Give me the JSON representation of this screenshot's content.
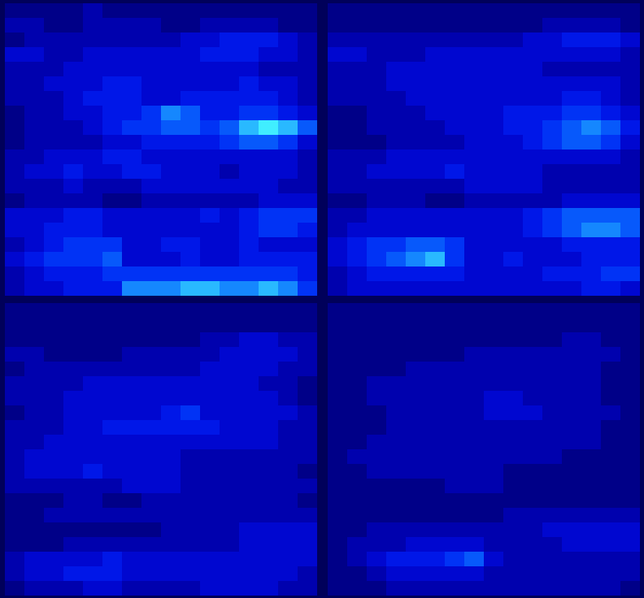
{
  "chart_data": [
    {
      "type": "heatmap",
      "tick_labels": false,
      "cells": [
        [
          1,
          1,
          1,
          1,
          2,
          1,
          1,
          1,
          1,
          1,
          1,
          1,
          1,
          1,
          1,
          1
        ],
        [
          2,
          2,
          1,
          1,
          2,
          2,
          2,
          2,
          1,
          1,
          2,
          2,
          2,
          2,
          1,
          1
        ],
        [
          1,
          2,
          2,
          2,
          2,
          2,
          2,
          2,
          2,
          3,
          3,
          4,
          4,
          4,
          3,
          2
        ],
        [
          3,
          3,
          2,
          2,
          3,
          3,
          3,
          3,
          3,
          3,
          4,
          4,
          4,
          3,
          3,
          2
        ],
        [
          2,
          2,
          2,
          3,
          3,
          3,
          3,
          3,
          3,
          3,
          3,
          3,
          3,
          2,
          2,
          2
        ],
        [
          2,
          2,
          3,
          3,
          3,
          4,
          4,
          3,
          3,
          3,
          3,
          3,
          4,
          3,
          3,
          2
        ],
        [
          2,
          2,
          2,
          3,
          4,
          4,
          4,
          3,
          3,
          4,
          4,
          4,
          4,
          4,
          3,
          2
        ],
        [
          1,
          2,
          2,
          3,
          3,
          4,
          4,
          5,
          7,
          6,
          4,
          4,
          5,
          5,
          4,
          3
        ],
        [
          1,
          2,
          2,
          2,
          3,
          4,
          5,
          5,
          6,
          6,
          5,
          6,
          8,
          9,
          8,
          6
        ],
        [
          1,
          2,
          2,
          2,
          2,
          3,
          3,
          4,
          4,
          4,
          4,
          5,
          6,
          6,
          5,
          3
        ],
        [
          2,
          2,
          3,
          3,
          3,
          4,
          4,
          3,
          3,
          3,
          3,
          3,
          3,
          3,
          3,
          2
        ],
        [
          2,
          3,
          3,
          4,
          3,
          3,
          4,
          4,
          3,
          3,
          3,
          2,
          3,
          3,
          3,
          2
        ],
        [
          2,
          2,
          2,
          3,
          2,
          2,
          2,
          3,
          3,
          3,
          3,
          3,
          3,
          3,
          2,
          2
        ],
        [
          1,
          2,
          2,
          2,
          2,
          1,
          1,
          2,
          2,
          2,
          2,
          2,
          2,
          3,
          3,
          3
        ],
        [
          3,
          3,
          3,
          4,
          4,
          3,
          3,
          3,
          3,
          3,
          4,
          3,
          4,
          5,
          5,
          5
        ],
        [
          3,
          3,
          4,
          4,
          4,
          3,
          3,
          3,
          3,
          3,
          3,
          3,
          4,
          5,
          5,
          4
        ],
        [
          2,
          3,
          4,
          5,
          5,
          5,
          3,
          3,
          4,
          4,
          3,
          3,
          4,
          3,
          3,
          3
        ],
        [
          3,
          4,
          5,
          5,
          5,
          6,
          3,
          3,
          3,
          4,
          3,
          3,
          4,
          4,
          4,
          4
        ],
        [
          2,
          3,
          4,
          4,
          4,
          5,
          5,
          5,
          5,
          5,
          5,
          5,
          5,
          5,
          5,
          4
        ],
        [
          2,
          3,
          3,
          4,
          4,
          4,
          7,
          7,
          7,
          8,
          8,
          7,
          7,
          8,
          7,
          5
        ]
      ]
    },
    {
      "type": "heatmap",
      "tick_labels": false,
      "cells": [
        [
          1,
          1,
          1,
          1,
          1,
          1,
          1,
          1,
          1,
          1,
          1,
          1,
          1,
          1,
          1,
          1
        ],
        [
          1,
          1,
          1,
          1,
          1,
          1,
          1,
          1,
          1,
          1,
          1,
          2,
          2,
          2,
          2,
          1
        ],
        [
          2,
          2,
          2,
          2,
          2,
          2,
          2,
          2,
          2,
          2,
          3,
          3,
          4,
          4,
          4,
          3
        ],
        [
          3,
          3,
          2,
          2,
          2,
          3,
          3,
          3,
          3,
          3,
          3,
          3,
          3,
          3,
          3,
          2
        ],
        [
          2,
          2,
          2,
          3,
          3,
          3,
          3,
          3,
          3,
          3,
          3,
          2,
          2,
          2,
          2,
          2
        ],
        [
          2,
          2,
          2,
          3,
          3,
          3,
          3,
          3,
          3,
          3,
          3,
          3,
          3,
          3,
          3,
          2
        ],
        [
          2,
          2,
          2,
          2,
          3,
          3,
          3,
          3,
          3,
          3,
          3,
          3,
          4,
          4,
          3,
          2
        ],
        [
          1,
          1,
          2,
          2,
          2,
          3,
          3,
          3,
          3,
          4,
          4,
          4,
          5,
          5,
          4,
          3
        ],
        [
          1,
          1,
          2,
          2,
          2,
          2,
          3,
          3,
          3,
          4,
          4,
          5,
          6,
          7,
          6,
          4
        ],
        [
          1,
          1,
          1,
          2,
          2,
          2,
          2,
          3,
          3,
          3,
          4,
          5,
          6,
          6,
          5,
          3
        ],
        [
          2,
          2,
          2,
          3,
          3,
          3,
          3,
          3,
          3,
          3,
          3,
          3,
          3,
          3,
          3,
          2
        ],
        [
          2,
          2,
          3,
          3,
          3,
          3,
          4,
          3,
          3,
          3,
          3,
          2,
          2,
          2,
          2,
          2
        ],
        [
          2,
          2,
          2,
          2,
          2,
          2,
          2,
          3,
          3,
          3,
          3,
          2,
          2,
          2,
          2,
          2
        ],
        [
          1,
          1,
          2,
          2,
          2,
          1,
          1,
          2,
          2,
          2,
          2,
          2,
          3,
          3,
          3,
          3
        ],
        [
          2,
          2,
          3,
          3,
          3,
          3,
          3,
          3,
          3,
          3,
          4,
          5,
          6,
          6,
          6,
          6
        ],
        [
          2,
          3,
          3,
          3,
          3,
          3,
          3,
          3,
          3,
          3,
          4,
          5,
          6,
          7,
          7,
          6
        ],
        [
          3,
          4,
          5,
          5,
          6,
          6,
          5,
          3,
          3,
          3,
          3,
          3,
          4,
          4,
          4,
          4
        ],
        [
          3,
          4,
          5,
          6,
          7,
          8,
          5,
          3,
          3,
          4,
          3,
          3,
          3,
          4,
          4,
          4
        ],
        [
          2,
          3,
          4,
          4,
          4,
          4,
          4,
          3,
          3,
          3,
          3,
          4,
          4,
          4,
          5,
          5
        ],
        [
          2,
          3,
          3,
          3,
          3,
          3,
          3,
          3,
          3,
          3,
          3,
          3,
          3,
          4,
          4,
          3
        ]
      ]
    },
    {
      "type": "heatmap",
      "tick_labels": false,
      "cells": [
        [
          1,
          1,
          1,
          1,
          1,
          1,
          1,
          1,
          1,
          1,
          1,
          1,
          1,
          1,
          1,
          1
        ],
        [
          1,
          1,
          1,
          1,
          1,
          1,
          1,
          1,
          1,
          1,
          1,
          1,
          1,
          1,
          1,
          1
        ],
        [
          1,
          1,
          1,
          1,
          1,
          1,
          1,
          1,
          1,
          1,
          2,
          2,
          3,
          3,
          2,
          2
        ],
        [
          2,
          2,
          1,
          1,
          1,
          1,
          2,
          2,
          2,
          2,
          2,
          3,
          3,
          3,
          3,
          2
        ],
        [
          1,
          2,
          2,
          2,
          2,
          2,
          2,
          2,
          2,
          2,
          3,
          3,
          3,
          3,
          2,
          2
        ],
        [
          2,
          2,
          2,
          2,
          3,
          3,
          3,
          3,
          3,
          3,
          3,
          3,
          3,
          2,
          2,
          1
        ],
        [
          2,
          2,
          2,
          3,
          3,
          3,
          3,
          3,
          3,
          3,
          3,
          3,
          3,
          3,
          2,
          1
        ],
        [
          1,
          2,
          2,
          3,
          3,
          3,
          3,
          3,
          4,
          5,
          3,
          3,
          3,
          3,
          3,
          2
        ],
        [
          2,
          2,
          2,
          3,
          3,
          4,
          4,
          4,
          4,
          4,
          4,
          3,
          3,
          3,
          2,
          2
        ],
        [
          2,
          2,
          3,
          3,
          3,
          3,
          3,
          3,
          3,
          3,
          3,
          3,
          3,
          3,
          2,
          2
        ],
        [
          2,
          3,
          3,
          3,
          3,
          3,
          3,
          3,
          3,
          2,
          2,
          2,
          2,
          2,
          2,
          2
        ],
        [
          2,
          3,
          3,
          3,
          4,
          3,
          3,
          3,
          3,
          2,
          2,
          2,
          2,
          2,
          2,
          1
        ],
        [
          2,
          2,
          2,
          2,
          2,
          2,
          3,
          3,
          3,
          2,
          2,
          2,
          2,
          2,
          2,
          2
        ],
        [
          1,
          1,
          1,
          2,
          2,
          1,
          1,
          2,
          2,
          2,
          2,
          2,
          2,
          2,
          2,
          1
        ],
        [
          1,
          1,
          2,
          2,
          2,
          2,
          2,
          2,
          2,
          2,
          2,
          2,
          2,
          2,
          2,
          2
        ],
        [
          1,
          1,
          1,
          1,
          1,
          1,
          1,
          1,
          2,
          2,
          2,
          2,
          3,
          3,
          3,
          3
        ],
        [
          1,
          1,
          1,
          2,
          2,
          2,
          2,
          2,
          2,
          2,
          2,
          2,
          3,
          3,
          3,
          3
        ],
        [
          2,
          3,
          3,
          3,
          3,
          4,
          3,
          3,
          3,
          3,
          3,
          3,
          3,
          3,
          3,
          3
        ],
        [
          2,
          3,
          3,
          4,
          4,
          4,
          3,
          3,
          3,
          3,
          3,
          3,
          3,
          3,
          3,
          2
        ],
        [
          1,
          2,
          2,
          2,
          3,
          3,
          2,
          2,
          2,
          2,
          3,
          3,
          3,
          3,
          2,
          2
        ]
      ]
    },
    {
      "type": "heatmap",
      "tick_labels": false,
      "cells": [
        [
          1,
          1,
          1,
          1,
          1,
          1,
          1,
          1,
          1,
          1,
          1,
          1,
          1,
          1,
          1,
          1
        ],
        [
          1,
          1,
          1,
          1,
          1,
          1,
          1,
          1,
          1,
          1,
          1,
          1,
          1,
          1,
          1,
          1
        ],
        [
          1,
          1,
          1,
          1,
          1,
          1,
          1,
          1,
          1,
          1,
          1,
          1,
          2,
          2,
          1,
          1
        ],
        [
          1,
          1,
          1,
          1,
          1,
          1,
          1,
          2,
          2,
          2,
          2,
          2,
          2,
          2,
          2,
          1
        ],
        [
          1,
          1,
          1,
          1,
          2,
          2,
          2,
          2,
          2,
          2,
          2,
          2,
          2,
          2,
          1,
          1
        ],
        [
          1,
          1,
          2,
          2,
          2,
          2,
          2,
          2,
          2,
          2,
          2,
          2,
          2,
          2,
          1,
          1
        ],
        [
          1,
          1,
          2,
          2,
          2,
          2,
          2,
          2,
          3,
          3,
          2,
          2,
          2,
          2,
          1,
          1
        ],
        [
          1,
          1,
          1,
          2,
          2,
          2,
          2,
          2,
          3,
          3,
          3,
          2,
          2,
          2,
          2,
          1
        ],
        [
          1,
          1,
          1,
          2,
          2,
          2,
          2,
          2,
          2,
          2,
          2,
          2,
          2,
          2,
          1,
          1
        ],
        [
          1,
          1,
          2,
          2,
          2,
          2,
          2,
          2,
          2,
          2,
          2,
          2,
          2,
          2,
          1,
          1
        ],
        [
          1,
          2,
          2,
          2,
          2,
          2,
          2,
          2,
          2,
          2,
          2,
          2,
          1,
          1,
          1,
          1
        ],
        [
          1,
          1,
          2,
          2,
          2,
          2,
          2,
          2,
          2,
          1,
          1,
          1,
          1,
          1,
          1,
          1
        ],
        [
          1,
          1,
          1,
          1,
          1,
          1,
          2,
          2,
          2,
          1,
          1,
          1,
          1,
          1,
          1,
          1
        ],
        [
          1,
          1,
          1,
          1,
          1,
          1,
          1,
          1,
          1,
          1,
          1,
          1,
          1,
          1,
          1,
          1
        ],
        [
          1,
          1,
          1,
          1,
          1,
          1,
          1,
          1,
          1,
          2,
          2,
          2,
          2,
          2,
          2,
          2
        ],
        [
          1,
          1,
          2,
          2,
          2,
          2,
          2,
          2,
          2,
          2,
          2,
          3,
          3,
          3,
          3,
          3
        ],
        [
          1,
          2,
          2,
          2,
          3,
          3,
          3,
          3,
          2,
          2,
          2,
          2,
          3,
          3,
          3,
          3
        ],
        [
          1,
          2,
          3,
          4,
          4,
          4,
          5,
          6,
          3,
          2,
          2,
          2,
          2,
          2,
          2,
          2
        ],
        [
          1,
          1,
          2,
          3,
          3,
          3,
          3,
          3,
          2,
          2,
          2,
          2,
          2,
          2,
          2,
          2
        ],
        [
          1,
          1,
          1,
          2,
          2,
          2,
          2,
          2,
          2,
          2,
          2,
          2,
          2,
          2,
          2,
          1
        ]
      ]
    }
  ]
}
